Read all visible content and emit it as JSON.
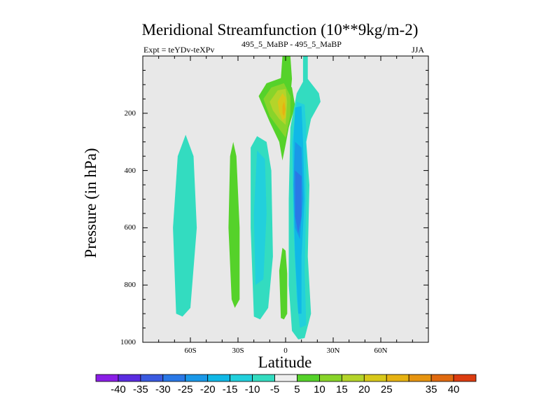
{
  "chart_data": {
    "type": "heatmap",
    "title": "Meridional Streamfunction (10**9kg/m-2)",
    "subtitle_left": "Expt = teYDv-teXPv",
    "subtitle_center": "495_5_MaBP - 495_5_MaBP",
    "subtitle_right": "JJA",
    "xlabel": "Latitude",
    "ylabel": "Pressure (in hPa)",
    "xlim": [
      -90,
      90
    ],
    "ylim": [
      1000,
      0
    ],
    "x_ticks": [
      {
        "value": -60,
        "label": "60S"
      },
      {
        "value": -30,
        "label": "30S"
      },
      {
        "value": 0,
        "label": "0"
      },
      {
        "value": 30,
        "label": "30N"
      },
      {
        "value": 60,
        "label": "60N"
      }
    ],
    "y_ticks": [
      {
        "value": 200,
        "label": "200"
      },
      {
        "value": 400,
        "label": "400"
      },
      {
        "value": 600,
        "label": "600"
      },
      {
        "value": 800,
        "label": "800"
      },
      {
        "value": 1000,
        "label": "1000"
      }
    ],
    "background_color": "#e8e8e8",
    "colorbar": {
      "labels": [
        "-40",
        "-35",
        "-30",
        "-25",
        "-20",
        "-15",
        "-10",
        "-5",
        "5",
        "10",
        "15",
        "20",
        "25",
        "35",
        "40"
      ],
      "label_boundary_index": [
        1,
        2,
        3,
        4,
        5,
        6,
        7,
        8,
        9,
        10,
        11,
        12,
        13,
        15,
        16
      ],
      "colors": [
        "#8a1ee6",
        "#5a2ce0",
        "#3a5ae0",
        "#2a78e6",
        "#1a98e8",
        "#10b8e6",
        "#22d0dc",
        "#33dcc0",
        "#eeeeee",
        "#55d22a",
        "#88d42a",
        "#b4d42a",
        "#d8c81a",
        "#e6b212",
        "#e69410",
        "#e06a10",
        "#dc3c10"
      ]
    },
    "contour_regions": [
      {
        "name": "far-south-cell",
        "level": -5,
        "points": [
          [
            -69,
            900
          ],
          [
            -71,
            600
          ],
          [
            -68,
            350
          ],
          [
            -63,
            275
          ],
          [
            -58,
            350
          ],
          [
            -56,
            600
          ],
          [
            -60,
            880
          ],
          [
            -65,
            910
          ]
        ]
      },
      {
        "name": "south-subtropic-green-band",
        "level": 5,
        "points": [
          [
            -34,
            850
          ],
          [
            -36,
            600
          ],
          [
            -35,
            350
          ],
          [
            -33,
            300
          ],
          [
            -31,
            350
          ],
          [
            -29,
            600
          ],
          [
            -29,
            850
          ],
          [
            -32,
            880
          ]
        ]
      },
      {
        "name": "south-ferrel-cell",
        "level": -5,
        "points": [
          [
            -20,
            910
          ],
          [
            -22,
            600
          ],
          [
            -22,
            320
          ],
          [
            -18,
            280
          ],
          [
            -12,
            300
          ],
          [
            -9,
            400
          ],
          [
            -8,
            700
          ],
          [
            -11,
            880
          ],
          [
            -16,
            920
          ]
        ]
      },
      {
        "name": "south-ferrel-core",
        "level": -10,
        "points": [
          [
            -19,
            800
          ],
          [
            -20,
            550
          ],
          [
            -18,
            330
          ],
          [
            -13,
            360
          ],
          [
            -12,
            550
          ],
          [
            -14,
            780
          ]
        ]
      },
      {
        "name": "near-equator-green-strip",
        "level": 5,
        "points": [
          [
            -3,
            915
          ],
          [
            -4,
            750
          ],
          [
            -2,
            670
          ],
          [
            0,
            680
          ],
          [
            1,
            760
          ],
          [
            1,
            900
          ],
          [
            -1,
            920
          ]
        ]
      },
      {
        "name": "upper-green-strip",
        "level": 5,
        "points": [
          [
            -2,
            200
          ],
          [
            -3,
            80
          ],
          [
            -2,
            0
          ],
          [
            3,
            0
          ],
          [
            4,
            80
          ],
          [
            2,
            200
          ],
          [
            0,
            260
          ]
        ]
      },
      {
        "name": "positive-cell-outer",
        "level": 5,
        "points": [
          [
            -17,
            140
          ],
          [
            -12,
            95
          ],
          [
            -2,
            75
          ],
          [
            4,
            110
          ],
          [
            6,
            175
          ],
          [
            2,
            250
          ],
          [
            0,
            310
          ],
          [
            -2,
            365
          ],
          [
            -4,
            300
          ],
          [
            -10,
            230
          ]
        ]
      },
      {
        "name": "positive-cell-10",
        "level": 10,
        "points": [
          [
            -14,
            150
          ],
          [
            -9,
            110
          ],
          [
            -1,
            95
          ],
          [
            3,
            140
          ],
          [
            3,
            205
          ],
          [
            0,
            285
          ],
          [
            -4,
            255
          ],
          [
            -10,
            210
          ]
        ]
      },
      {
        "name": "positive-cell-15",
        "level": 15,
        "points": [
          [
            -10,
            160
          ],
          [
            -5,
            120
          ],
          [
            0,
            115
          ],
          [
            1,
            160
          ],
          [
            0,
            240
          ],
          [
            -4,
            220
          ],
          [
            -8,
            190
          ]
        ]
      },
      {
        "name": "positive-cell-20",
        "level": 20,
        "points": [
          [
            -5,
            160
          ],
          [
            -2,
            130
          ],
          [
            0,
            145
          ],
          [
            0,
            215
          ],
          [
            -2,
            225
          ],
          [
            -4,
            195
          ]
        ]
      },
      {
        "name": "positive-cell-25",
        "level": 25,
        "points": [
          [
            -2,
            175
          ],
          [
            -1,
            160
          ],
          [
            0,
            185
          ],
          [
            -1,
            210
          ],
          [
            -2,
            200
          ]
        ]
      },
      {
        "name": "tropical-cell-5",
        "level": -5,
        "points": [
          [
            11,
            0
          ],
          [
            14,
            0
          ],
          [
            14,
            80
          ],
          [
            21,
            130
          ],
          [
            22,
            160
          ],
          [
            16,
            220
          ],
          [
            13,
            300
          ],
          [
            15,
            450
          ],
          [
            14,
            700
          ],
          [
            16,
            900
          ],
          [
            12,
            985
          ],
          [
            8,
            990
          ],
          [
            4,
            960
          ],
          [
            2,
            800
          ],
          [
            2,
            500
          ],
          [
            3,
            250
          ],
          [
            7,
            130
          ],
          [
            11,
            90
          ]
        ]
      },
      {
        "name": "tropical-cell-10",
        "level": -10,
        "points": [
          [
            7,
            160
          ],
          [
            12,
            170
          ],
          [
            13,
            260
          ],
          [
            13,
            500
          ],
          [
            12,
            750
          ],
          [
            13,
            940
          ],
          [
            9,
            950
          ],
          [
            7,
            850
          ],
          [
            5,
            600
          ],
          [
            4,
            300
          ]
        ]
      },
      {
        "name": "tropical-cell-15",
        "level": -15,
        "points": [
          [
            6,
            180
          ],
          [
            10,
            175
          ],
          [
            11,
            300
          ],
          [
            12,
            500
          ],
          [
            10,
            700
          ],
          [
            10,
            900
          ],
          [
            8,
            900
          ],
          [
            6,
            700
          ],
          [
            5,
            500
          ],
          [
            5,
            300
          ]
        ]
      },
      {
        "name": "tropical-cell-20",
        "level": -20,
        "points": [
          [
            6,
            300
          ],
          [
            10,
            320
          ],
          [
            11,
            500
          ],
          [
            9,
            640
          ],
          [
            6,
            600
          ],
          [
            5,
            450
          ]
        ]
      },
      {
        "name": "tropical-cell-25",
        "level": -25,
        "points": [
          [
            6,
            400
          ],
          [
            10,
            420
          ],
          [
            10,
            560
          ],
          [
            8,
            620
          ],
          [
            6,
            560
          ]
        ]
      }
    ]
  }
}
